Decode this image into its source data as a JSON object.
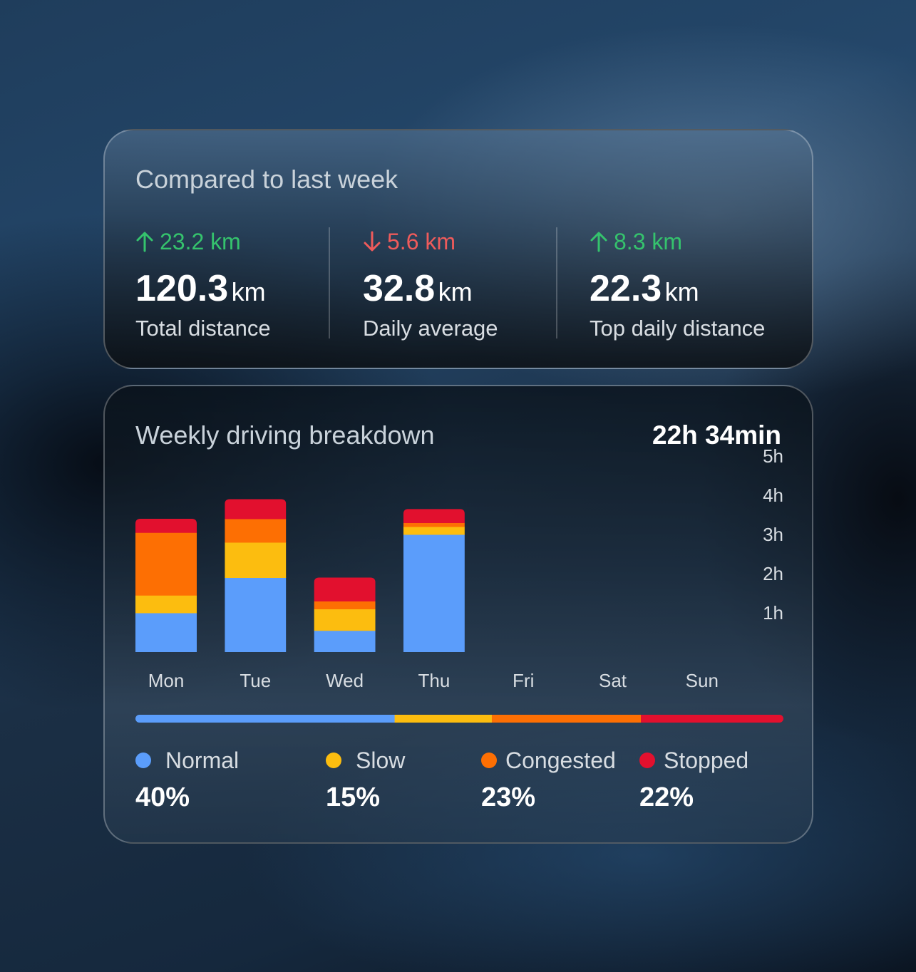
{
  "comparison": {
    "title": "Compared to last week",
    "stats": [
      {
        "delta": "23.2 km",
        "direction": "up",
        "value": "120.3",
        "unit": "km",
        "label": "Total distance"
      },
      {
        "delta": "5.6 km",
        "direction": "down",
        "value": "32.8",
        "unit": "km",
        "label": "Daily average"
      },
      {
        "delta": "8.3 km",
        "direction": "up",
        "value": "22.3",
        "unit": "km",
        "label": "Top daily distance"
      }
    ]
  },
  "breakdown": {
    "title": "Weekly driving breakdown",
    "total_time": "22h 34min",
    "legend": [
      {
        "name": "Normal",
        "pct": "40%",
        "color": "#5b9dfb"
      },
      {
        "name": "Slow",
        "pct": "15%",
        "color": "#fcbd0f"
      },
      {
        "name": "Congested",
        "pct": "23%",
        "color": "#fd6f03"
      },
      {
        "name": "Stopped",
        "pct": "22%",
        "color": "#e2102e"
      }
    ]
  },
  "chart_data": {
    "type": "bar",
    "stacked": true,
    "categories": [
      "Mon",
      "Tue",
      "Wed",
      "Thu",
      "Fri",
      "Sat",
      "Sun"
    ],
    "series": [
      {
        "name": "Normal",
        "color": "#5b9dfb",
        "values": [
          1.0,
          1.9,
          0.55,
          3.0,
          0,
          0,
          0
        ]
      },
      {
        "name": "Slow",
        "color": "#fcbd0f",
        "values": [
          0.45,
          0.9,
          0.55,
          0.2,
          0,
          0,
          0
        ]
      },
      {
        "name": "Congested",
        "color": "#fd6f03",
        "values": [
          1.6,
          0.6,
          0.2,
          0.1,
          0,
          0,
          0
        ]
      },
      {
        "name": "Stopped",
        "color": "#e2102e",
        "values": [
          0.35,
          0.5,
          0.6,
          0.35,
          0,
          0,
          0
        ]
      }
    ],
    "y_ticks": [
      "1h",
      "2h",
      "3h",
      "4h",
      "5h"
    ],
    "ylim": [
      0,
      5
    ],
    "y_axis_side": "right",
    "grid": false,
    "share_bar": [
      0.4,
      0.15,
      0.23,
      0.22
    ]
  }
}
